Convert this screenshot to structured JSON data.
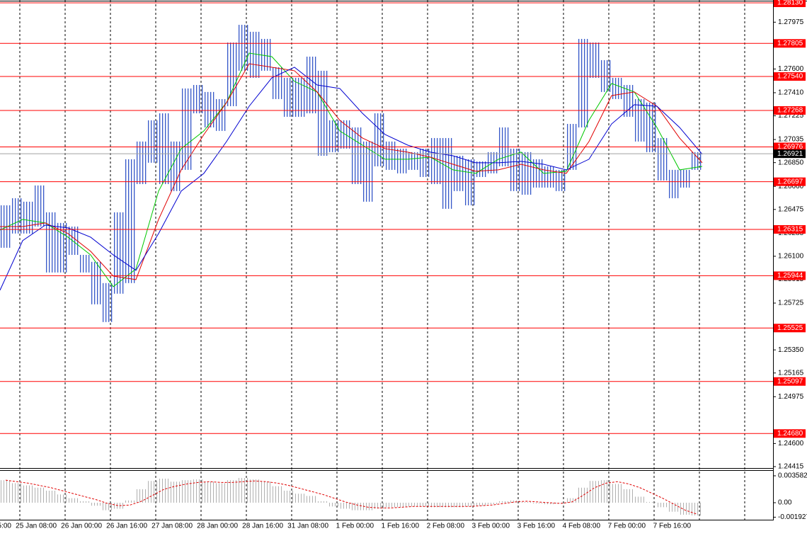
{
  "chart_data": [
    {
      "type": "ohlc",
      "xlim": [
        0,
        273
      ],
      "ylim": [
        1.24415,
        1.2813
      ],
      "color": "#3557c8",
      "x": [
        2,
        6,
        10,
        14,
        18,
        22,
        26,
        30,
        34,
        38,
        42,
        46,
        50,
        54,
        58,
        62,
        66,
        70,
        74,
        78,
        82,
        86,
        90,
        94,
        98,
        102,
        106,
        110,
        114,
        118,
        122,
        126,
        130,
        134,
        138,
        142,
        146,
        150,
        154,
        158,
        162,
        166,
        170,
        174,
        178,
        182,
        186,
        190,
        194,
        198,
        202,
        206,
        210,
        214,
        218,
        222,
        226,
        230,
        234,
        238,
        242,
        246
      ],
      "high": [
        1.26508,
        1.26565,
        1.26537,
        1.26667,
        1.26452,
        1.26367,
        1.26338,
        1.26111,
        1.26055,
        1.25885,
        1.26452,
        1.26877,
        1.27019,
        1.27189,
        1.27245,
        1.27019,
        1.27444,
        1.27472,
        1.27416,
        1.27359,
        1.27812,
        1.27954,
        1.27898,
        1.27841,
        1.27614,
        1.27529,
        1.27529,
        1.27699,
        1.27586,
        1.27189,
        1.27189,
        1.27132,
        1.27019,
        1.27245,
        1.27019,
        1.26962,
        1.26934,
        1.26962,
        1.27047,
        1.27047,
        1.26905,
        1.26877,
        1.2686,
        1.26934,
        1.27132,
        1.26962,
        1.26934,
        1.26877,
        1.2682,
        1.26792,
        1.2716,
        1.27841,
        1.27812,
        1.27671,
        1.27529,
        1.27472,
        1.27359,
        1.27331,
        1.27047,
        1.26792,
        1.26792,
        1.26934
      ],
      "low": [
        1.26168,
        1.26282,
        1.26282,
        1.26338,
        1.2597,
        1.2597,
        1.26111,
        1.2597,
        1.25715,
        1.25573,
        1.258,
        1.25885,
        1.26678,
        1.26849,
        1.26678,
        1.26622,
        1.26792,
        1.27245,
        1.27132,
        1.27104,
        1.27302,
        1.27586,
        1.27529,
        1.27586,
        1.27359,
        1.27217,
        1.27217,
        1.27245,
        1.26905,
        1.26934,
        1.26962,
        1.26678,
        1.26537,
        1.2682,
        1.26792,
        1.26764,
        1.26792,
        1.26735,
        1.26678,
        1.2648,
        1.26622,
        1.26508,
        1.26735,
        1.26764,
        1.2682,
        1.26622,
        1.26593,
        1.2665,
        1.2665,
        1.26622,
        1.26792,
        1.27132,
        1.27529,
        1.27416,
        1.27359,
        1.27217,
        1.27019,
        1.26934,
        1.26707,
        1.26565,
        1.2665,
        1.26792
      ],
      "ma": [
        {
          "color": "#00c800",
          "x": [
            0,
            8,
            16,
            24,
            32,
            40,
            48,
            56,
            64,
            72,
            80,
            88,
            96,
            104,
            112,
            120,
            128,
            136,
            144,
            152,
            160,
            168,
            176,
            184,
            192,
            200,
            208,
            216,
            224,
            232,
            240,
            248
          ],
          "values": [
            1.2631,
            1.26395,
            1.26367,
            1.26253,
            1.26111,
            1.25856,
            1.25998,
            1.26622,
            1.26962,
            1.27104,
            1.27331,
            1.27727,
            1.27699,
            1.27501,
            1.27416,
            1.27104,
            1.2699,
            1.26877,
            1.26877,
            1.26894,
            1.26792,
            1.26764,
            1.26877,
            1.26934,
            1.26764,
            1.26781,
            1.27189,
            1.27484,
            1.27416,
            1.27132,
            1.26792,
            1.2682
          ]
        },
        {
          "color": "#e00000",
          "x": [
            0,
            8,
            16,
            24,
            32,
            40,
            48,
            56,
            64,
            72,
            80,
            88,
            96,
            104,
            112,
            120,
            128,
            136,
            144,
            152,
            160,
            168,
            176,
            184,
            192,
            200,
            208,
            216,
            224,
            232,
            240,
            248
          ],
          "values": [
            1.26338,
            1.26338,
            1.26367,
            1.26282,
            1.2614,
            1.25941,
            1.25913,
            1.26395,
            1.26792,
            1.27075,
            1.27331,
            1.27642,
            1.27614,
            1.27586,
            1.27416,
            1.27189,
            1.27047,
            1.26962,
            1.26934,
            1.26894,
            1.26837,
            1.26781,
            1.26792,
            1.26837,
            1.26792,
            1.26764,
            1.27019,
            1.27387,
            1.27416,
            1.27302,
            1.27047,
            1.26849
          ]
        },
        {
          "color": "#0000d0",
          "x": [
            0,
            8,
            16,
            24,
            32,
            40,
            48,
            56,
            64,
            72,
            80,
            88,
            96,
            104,
            112,
            120,
            128,
            136,
            144,
            152,
            160,
            168,
            176,
            184,
            192,
            200,
            208,
            216,
            224,
            232,
            240,
            248
          ],
          "values": [
            1.25828,
            1.26225,
            1.2635,
            1.26327,
            1.26253,
            1.26111,
            1.25987,
            1.26282,
            1.26622,
            1.26764,
            1.27019,
            1.27302,
            1.27529,
            1.27614,
            1.27472,
            1.27444,
            1.27245,
            1.27075,
            1.2699,
            1.26934,
            1.26905,
            1.26849,
            1.26849,
            1.2686,
            1.26837,
            1.26792,
            1.26877,
            1.2716,
            1.27314,
            1.27302,
            1.27132,
            1.26917
          ]
        }
      ],
      "levels": [
        {
          "value": 1.2813,
          "label": "1.28130"
        },
        {
          "value": 1.27805,
          "label": "1.27805"
        },
        {
          "value": 1.2754,
          "label": "1.27540"
        },
        {
          "value": 1.27268,
          "label": "1.27268"
        },
        {
          "value": 1.26976,
          "label": "1.26976"
        },
        {
          "value": 1.26697,
          "label": "1.26697"
        },
        {
          "value": 1.26315,
          "label": "1.26315"
        },
        {
          "value": 1.25944,
          "label": "1.25944"
        },
        {
          "value": 1.25525,
          "label": "1.25525"
        },
        {
          "value": 1.25097,
          "label": "1.25097"
        },
        {
          "value": 1.2468,
          "label": "1.24680"
        }
      ],
      "current": {
        "value": 1.26921,
        "label": "1.26921"
      },
      "yticks": [
        {
          "value": 1.27975,
          "label": "1.27975"
        },
        {
          "value": 1.276,
          "label": "1.27600"
        },
        {
          "value": 1.2741,
          "label": "1.27410"
        },
        {
          "value": 1.27225,
          "label": "1.27225"
        },
        {
          "value": 1.27035,
          "label": "1.27035"
        },
        {
          "value": 1.2685,
          "label": "1.26850"
        },
        {
          "value": 1.2666,
          "label": "1.26660"
        },
        {
          "value": 1.26475,
          "label": "1.26475"
        },
        {
          "value": 1.26285,
          "label": "1.26285"
        },
        {
          "value": 1.261,
          "label": "1.26100"
        },
        {
          "value": 1.25915,
          "label": "1.25915"
        },
        {
          "value": 1.25725,
          "label": "1.25725"
        },
        {
          "value": 1.2535,
          "label": "1.25350"
        },
        {
          "value": 1.25165,
          "label": "1.25165"
        },
        {
          "value": 1.24975,
          "label": "1.24975"
        },
        {
          "value": 1.246,
          "label": "1.24600"
        },
        {
          "value": 1.24415,
          "label": "1.24415"
        }
      ],
      "xticks": [
        {
          "value": -9,
          "label": "5:00"
        },
        {
          "value": 7,
          "label": "25 Jan 08:00"
        },
        {
          "value": 23,
          "label": "26 Jan 00:00"
        },
        {
          "value": 39,
          "label": "26 Jan 16:00"
        },
        {
          "value": 55,
          "label": "27 Jan 08:00"
        },
        {
          "value": 71,
          "label": "28 Jan 00:00"
        },
        {
          "value": 87,
          "label": "28 Jan 16:00"
        },
        {
          "value": 103,
          "label": "31 Jan 08:00"
        },
        {
          "value": 119,
          "label": "1 Feb 00:00"
        },
        {
          "value": 135,
          "label": "1 Feb 16:00"
        },
        {
          "value": 151,
          "label": "2 Feb 08:00"
        },
        {
          "value": 167,
          "label": "3 Feb 00:00"
        },
        {
          "value": 183,
          "label": "3 Feb 16:00"
        },
        {
          "value": 199,
          "label": "4 Feb 08:00"
        },
        {
          "value": 215,
          "label": "7 Feb 00:00"
        },
        {
          "value": 231,
          "label": "7 Feb 16:00"
        }
      ]
    },
    {
      "type": "macd",
      "ylim": [
        -0.00217,
        0.00424
      ],
      "yticks": [
        0.003582,
        {
          "value": 0,
          "label": "0.00"
        },
        -0.001927
      ],
      "hist_color": "#b0b0b0",
      "signal_color": "#e00000",
      "x": [
        2,
        6,
        10,
        14,
        18,
        22,
        26,
        30,
        34,
        38,
        42,
        46,
        50,
        54,
        58,
        62,
        66,
        70,
        74,
        78,
        82,
        86,
        90,
        94,
        98,
        102,
        106,
        110,
        114,
        118,
        122,
        126,
        130,
        134,
        138,
        142,
        146,
        150,
        154,
        158,
        162,
        166,
        170,
        174,
        178,
        182,
        186,
        190,
        194,
        198,
        202,
        206,
        210,
        214,
        218,
        222,
        226,
        230,
        234,
        238,
        242,
        246
      ],
      "histogram": [
        0.003,
        0.0026,
        0.0023,
        0.002,
        0.0016,
        0.0011,
        0.0006,
        0.0002,
        -0.0004,
        -0.001,
        -0.0008,
        0.0003,
        0.0018,
        0.0029,
        0.0032,
        0.0028,
        0.003,
        0.0031,
        0.0028,
        0.0026,
        0.003,
        0.0033,
        0.0031,
        0.0028,
        0.0022,
        0.0016,
        0.0012,
        0.0009,
        0.0002,
        -0.0005,
        -0.0008,
        -0.001,
        -0.001,
        -0.0008,
        -0.0006,
        -0.0006,
        -0.0005,
        -0.0005,
        -0.0006,
        -0.0006,
        -0.0006,
        -0.0005,
        -0.0004,
        -0.0002,
        0.0002,
        0.0003,
        0.0001,
        -0.0001,
        -0.0002,
        -0.0001,
        0.0006,
        0.002,
        0.0029,
        0.003,
        0.0025,
        0.0018,
        0.0008,
        0.0001,
        -0.0006,
        -0.0012,
        -0.0016,
        -0.0017
      ],
      "signal": [
        0.003,
        0.0028,
        0.0026,
        0.0023,
        0.002,
        0.0016,
        0.0012,
        0.0008,
        0.0004,
        -0.0001,
        -0.0004,
        -0.0003,
        0.0002,
        0.001,
        0.0018,
        0.0022,
        0.0025,
        0.0027,
        0.0028,
        0.0027,
        0.0027,
        0.0028,
        0.0029,
        0.0028,
        0.0026,
        0.0023,
        0.0019,
        0.0015,
        0.0011,
        0.0006,
        0.0001,
        -0.0003,
        -0.0006,
        -0.0007,
        -0.0007,
        -0.0006,
        -0.0005,
        -0.0005,
        -0.0005,
        -0.0005,
        -0.0005,
        -0.0005,
        -0.0004,
        -0.0003,
        -0.0001,
        0.0001,
        0.0002,
        0.0001,
        0,
        -0.0001,
        0.0001,
        0.001,
        0.002,
        0.0026,
        0.0028,
        0.0025,
        0.002,
        0.0013,
        0.0006,
        -0.0002,
        -0.001,
        -0.0015
      ]
    }
  ]
}
